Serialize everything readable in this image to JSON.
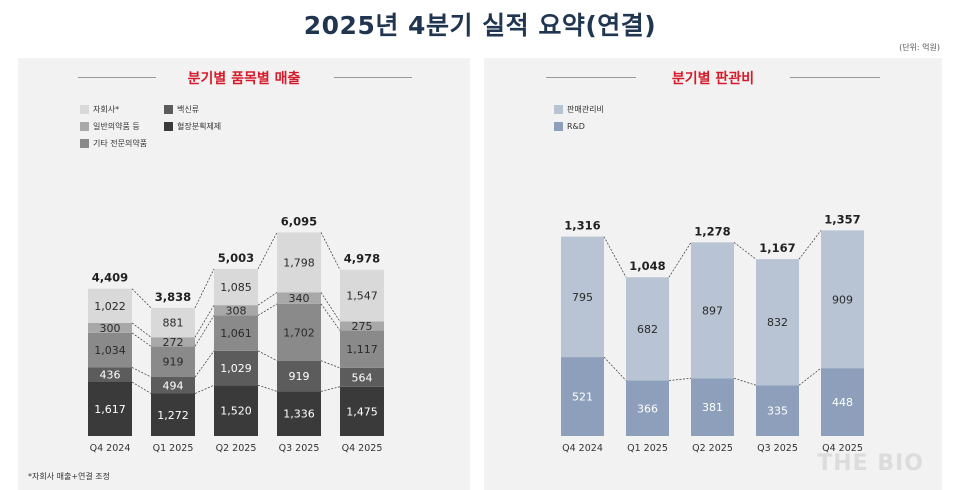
{
  "title": "2025년 4분기 실적 요약(연결)",
  "unit": "(단위: 억원)",
  "watermark": "THE BIO",
  "chart_data": [
    {
      "type": "bar",
      "stacked": true,
      "title": "분기별 품목별 매출",
      "categories": [
        "Q4 2024",
        "Q1 2025",
        "Q2 2025",
        "Q3 2025",
        "Q4 2025"
      ],
      "series": [
        {
          "name": "혈장분획제제",
          "color": "#3a3a3a",
          "values": [
            1617,
            1272,
            1520,
            1336,
            1475
          ]
        },
        {
          "name": "백신류",
          "color": "#5c5c5c",
          "values": [
            436,
            494,
            1029,
            919,
            564
          ]
        },
        {
          "name": "기타 전문의약품",
          "color": "#8a8a8a",
          "values": [
            1034,
            919,
            1061,
            1702,
            1117
          ]
        },
        {
          "name": "일반의약품 등",
          "color": "#a8a8a8",
          "values": [
            300,
            272,
            308,
            340,
            275
          ]
        },
        {
          "name": "자회사*",
          "color": "#d9d9d9",
          "values": [
            1022,
            881,
            1085,
            1798,
            1547
          ]
        }
      ],
      "totals": [
        "4,409",
        "3,838",
        "5,003",
        "6,095",
        "4,978"
      ],
      "labels": [
        [
          "1,617",
          "1,272",
          "1,520",
          "1,336",
          "1,475"
        ],
        [
          "436",
          "494",
          "1,029",
          "919",
          "564"
        ],
        [
          "1,034",
          "919",
          "1,061",
          "1,702",
          "1,117"
        ],
        [
          "300",
          "272",
          "308",
          "340",
          "275"
        ],
        [
          "1,022",
          "881",
          "1,085",
          "1,798",
          "1,547"
        ]
      ],
      "legend_order": [
        "자회사*",
        "백신류",
        "일반의약품 등",
        "혈장분획제제",
        "기타 전문의약품"
      ],
      "footnote": "*자회사 매출+연결 조정"
    },
    {
      "type": "bar",
      "stacked": true,
      "title": "분기별 판관비",
      "categories": [
        "Q4 2024",
        "Q1 2025",
        "Q2 2025",
        "Q3 2025",
        "Q4 2025"
      ],
      "series": [
        {
          "name": "R&D",
          "color": "#8d9fba",
          "values": [
            521,
            366,
            381,
            335,
            448
          ]
        },
        {
          "name": "판매관리비",
          "color": "#b8c3d3",
          "values": [
            795,
            682,
            897,
            832,
            909
          ]
        }
      ],
      "totals": [
        "1,316",
        "1,048",
        "1,278",
        "1,167",
        "1,357"
      ],
      "labels": [
        [
          "521",
          "366",
          "381",
          "335",
          "448"
        ],
        [
          "795",
          "682",
          "897",
          "832",
          "909"
        ]
      ],
      "legend_order": [
        "판매관리비",
        "R&D"
      ]
    }
  ]
}
